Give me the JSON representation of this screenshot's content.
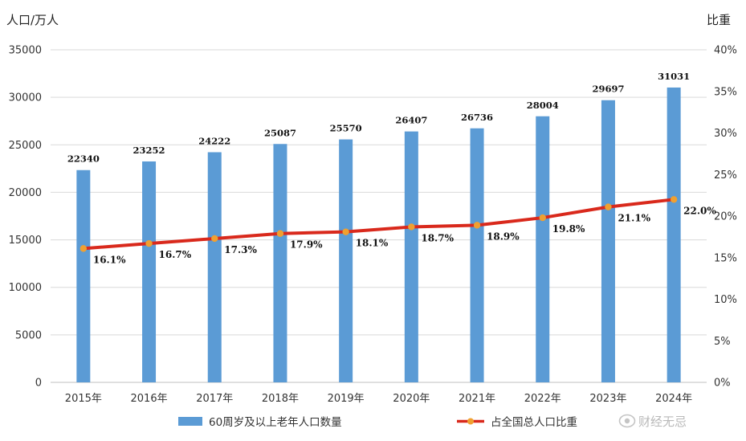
{
  "chart_data": {
    "type": "bar",
    "categories": [
      "2015年",
      "2016年",
      "2017年",
      "2018年",
      "2019年",
      "2020年",
      "2021年",
      "2022年",
      "2023年",
      "2024年"
    ],
    "series": [
      {
        "name": "60周岁及以上老年人口数量",
        "type": "bar",
        "axis": "left",
        "color": "#5b9bd5",
        "values": [
          22340,
          23252,
          24222,
          25087,
          25570,
          26407,
          26736,
          28004,
          29697,
          31031
        ]
      },
      {
        "name": "占全国总人口比重",
        "type": "line",
        "axis": "right",
        "color": "#d9291c",
        "marker_color": "#f0a030",
        "values": [
          16.1,
          16.7,
          17.3,
          17.9,
          18.1,
          18.7,
          18.9,
          19.8,
          21.1,
          22.0
        ],
        "labels": [
          "16.1%",
          "16.7%",
          "17.3%",
          "17.9%",
          "18.1%",
          "18.7%",
          "18.9%",
          "19.8%",
          "21.1%",
          "22.0%"
        ]
      }
    ],
    "ylabel_left": "人口/万人",
    "ylabel_right": "比重",
    "ylim_left": [
      0,
      35000
    ],
    "yticks_left": [
      "0",
      "5000",
      "10000",
      "15000",
      "20000",
      "25000",
      "30000",
      "35000"
    ],
    "ylim_right": [
      0,
      40
    ],
    "yticks_right": [
      "0%",
      "5%",
      "10%",
      "15%",
      "20%",
      "25%",
      "30%",
      "35%",
      "40%"
    ],
    "grid": true,
    "legend_position": "bottom"
  },
  "watermark": "财经无忌",
  "watermark_icon": "weibo-eye-icon"
}
